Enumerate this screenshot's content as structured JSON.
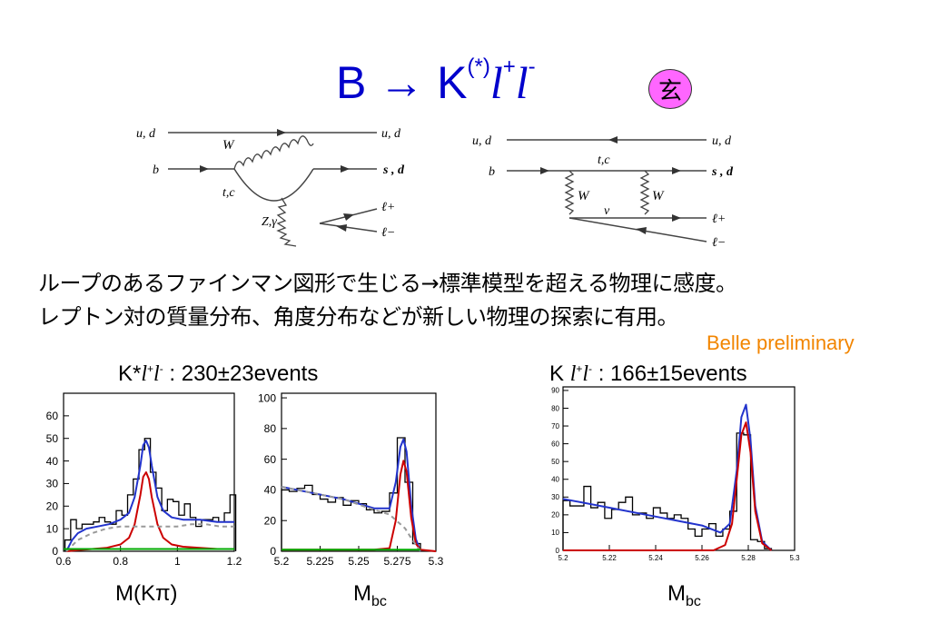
{
  "title": {
    "base": "B → K",
    "star": "(*)",
    "l1": "l",
    "plus": "+",
    "l2": "l",
    "minus": "-"
  },
  "badge": "玄",
  "diagrams": {
    "penguin": {
      "quark_top_left": "u, d",
      "quark_top_right": "u, d",
      "b_label": "b",
      "s_label": "s , d",
      "w_label": "W",
      "tc_label": "t,c",
      "zg_label": "Z,γ",
      "lplus": "ℓ+",
      "lminus": "ℓ−"
    },
    "box": {
      "quark_top_left": "u, d",
      "quark_top_right": "u, d",
      "b_label": "b",
      "tc_label": "t,c",
      "s_label": "s , d",
      "w_left": "W",
      "w_right": "W",
      "nu_label": "ν",
      "lplus": "ℓ+",
      "lminus": "ℓ−"
    }
  },
  "text_lines": [
    "ループのあるファインマン図形で生じる→標準模型を超える物理に感度。",
    "レプトン対の質量分布、角度分布などが新しい物理の探索に有用。"
  ],
  "belle": "Belle preliminary",
  "headings": {
    "kstar": {
      "prefix": "K*",
      "l1": "l",
      "plus": "+",
      "l2": "l",
      "minus": "-",
      "suffix": " : 230±23events"
    },
    "k": {
      "prefix": "K ",
      "l1": "l",
      "plus": "+",
      "l2": "l",
      "minus": "-",
      "suffix": " : 166±15events"
    }
  },
  "axis_labels": {
    "mkpi": "M(Kπ)",
    "mbc1_main": "M",
    "mbc1_sub": "bc",
    "mbc2_main": "M",
    "mbc2_sub": "bc"
  },
  "chart_data": [
    {
      "type": "line",
      "x_range": [
        0.6,
        1.2
      ],
      "ylim": [
        0,
        70
      ],
      "xticks": [
        "0.6",
        "0.8",
        "1",
        "1.2"
      ],
      "yticks": [
        "0",
        "10",
        "20",
        "30",
        "40",
        "50",
        "60"
      ],
      "histogram_x": [
        0.615,
        0.635,
        0.655,
        0.675,
        0.695,
        0.715,
        0.735,
        0.755,
        0.775,
        0.795,
        0.815,
        0.835,
        0.855,
        0.875,
        0.895,
        0.915,
        0.935,
        0.955,
        0.975,
        0.995,
        1.015,
        1.035,
        1.055,
        1.075,
        1.095,
        1.115,
        1.135,
        1.155,
        1.175,
        1.195
      ],
      "histogram_y": [
        5,
        14,
        10,
        12,
        12,
        13,
        15,
        13,
        12,
        18,
        16,
        25,
        32,
        45,
        50,
        35,
        28,
        18,
        23,
        22,
        16,
        21,
        15,
        11,
        14,
        14,
        15,
        13,
        17,
        25
      ],
      "series": [
        {
          "color": "#2233cc",
          "x": [
            0.61,
            0.63,
            0.65,
            0.68,
            0.72,
            0.76,
            0.8,
            0.83,
            0.85,
            0.87,
            0.88,
            0.89,
            0.9,
            0.91,
            0.93,
            0.95,
            0.98,
            1.02,
            1.08,
            1.14,
            1.2
          ],
          "y": [
            0,
            5,
            8,
            10,
            11,
            12,
            14,
            17,
            24,
            38,
            47,
            49,
            46,
            38,
            24,
            18,
            15,
            14,
            14,
            13,
            13
          ]
        },
        {
          "color": "#cc0000",
          "x": [
            0.61,
            0.65,
            0.7,
            0.75,
            0.8,
            0.83,
            0.85,
            0.87,
            0.88,
            0.89,
            0.9,
            0.91,
            0.93,
            0.95,
            0.98,
            1.02,
            1.08,
            1.14,
            1.2
          ],
          "y": [
            0,
            0.5,
            1,
            1.5,
            3,
            6,
            12,
            25,
            33,
            35,
            32,
            24,
            12,
            6,
            3,
            2,
            1.5,
            1,
            1
          ]
        },
        {
          "color": "#999999",
          "dashed": true,
          "x": [
            0.61,
            0.65,
            0.7,
            0.75,
            0.8,
            0.85,
            0.9,
            0.95,
            1.0,
            1.05,
            1.1,
            1.15,
            1.2
          ],
          "y": [
            0,
            5,
            8,
            10,
            11,
            11,
            11,
            11,
            11,
            12,
            12,
            11,
            11
          ]
        },
        {
          "color": "#00aa00",
          "x": [
            0.6,
            1.2
          ],
          "y": [
            1,
            1
          ]
        }
      ]
    },
    {
      "type": "line",
      "x_range": [
        5.2,
        5.3
      ],
      "ylim": [
        0,
        103
      ],
      "xticks": [
        "5.2",
        "5.225",
        "5.25",
        "5.275",
        "5.3"
      ],
      "yticks": [
        "0",
        "20",
        "40",
        "60",
        "80",
        "100"
      ],
      "histogram_x": [
        5.2025,
        5.2075,
        5.2125,
        5.2175,
        5.2225,
        5.2275,
        5.2325,
        5.2375,
        5.2425,
        5.2475,
        5.2525,
        5.2575,
        5.2625,
        5.2675,
        5.2725,
        5.2775,
        5.2825,
        5.2875
      ],
      "histogram_y": [
        40,
        39,
        41,
        43,
        37,
        34,
        32,
        35,
        30,
        33,
        31,
        27,
        25,
        26,
        38,
        74,
        45,
        5
      ],
      "series": [
        {
          "color": "#2233cc",
          "x": [
            5.2,
            5.22,
            5.24,
            5.26,
            5.27,
            5.274,
            5.277,
            5.279,
            5.281,
            5.284,
            5.287,
            5.29
          ],
          "y": [
            42,
            38,
            34,
            28,
            28,
            45,
            68,
            73,
            65,
            30,
            8,
            0
          ]
        },
        {
          "color": "#cc0000",
          "x": [
            5.2,
            5.26,
            5.27,
            5.274,
            5.277,
            5.279,
            5.281,
            5.284,
            5.287,
            5.29,
            5.3
          ],
          "y": [
            1,
            1,
            2,
            20,
            50,
            59,
            52,
            22,
            5,
            1,
            0
          ]
        },
        {
          "color": "#999999",
          "dashed": true,
          "x": [
            5.2,
            5.22,
            5.24,
            5.26,
            5.27,
            5.28,
            5.285,
            5.29
          ],
          "y": [
            42,
            38,
            34,
            27,
            24,
            15,
            7,
            0
          ]
        },
        {
          "color": "#00aa00",
          "x": [
            5.2,
            5.29
          ],
          "y": [
            1,
            1
          ]
        }
      ]
    },
    {
      "type": "line",
      "x_range": [
        5.2,
        5.3
      ],
      "ylim": [
        0,
        92
      ],
      "xticks": [
        "5.2",
        "5.22",
        "5.24",
        "5.26",
        "5.28",
        "5.3"
      ],
      "yticks": [
        "0",
        "10",
        "20",
        "30",
        "40",
        "50",
        "60",
        "70",
        "80",
        "90"
      ],
      "histogram_x": [
        5.2015,
        5.2045,
        5.2075,
        5.2105,
        5.2135,
        5.2165,
        5.2195,
        5.2225,
        5.2255,
        5.2285,
        5.2315,
        5.2345,
        5.2375,
        5.2405,
        5.2435,
        5.2465,
        5.2495,
        5.2525,
        5.2555,
        5.2585,
        5.2615,
        5.2645,
        5.2675,
        5.2705,
        5.2735,
        5.2765,
        5.2795,
        5.2825,
        5.2855,
        5.2885
      ],
      "histogram_y": [
        28,
        25,
        25,
        36,
        24,
        27,
        18,
        23,
        27,
        30,
        20,
        21,
        18,
        24,
        21,
        18,
        20,
        18,
        12,
        8,
        12,
        15,
        8,
        12,
        22,
        66,
        65,
        6,
        5,
        1
      ],
      "series": [
        {
          "color": "#2233cc",
          "x": [
            5.2,
            5.22,
            5.24,
            5.26,
            5.268,
            5.272,
            5.275,
            5.277,
            5.279,
            5.281,
            5.283,
            5.286,
            5.29
          ],
          "y": [
            29,
            24,
            19,
            14,
            10,
            15,
            45,
            75,
            82,
            62,
            25,
            5,
            0
          ]
        },
        {
          "color": "#cc0000",
          "x": [
            5.2,
            5.265,
            5.27,
            5.273,
            5.275,
            5.277,
            5.279,
            5.281,
            5.283,
            5.286,
            5.29
          ],
          "y": [
            0,
            0,
            3,
            15,
            40,
            65,
            72,
            55,
            22,
            4,
            0
          ]
        }
      ]
    }
  ]
}
